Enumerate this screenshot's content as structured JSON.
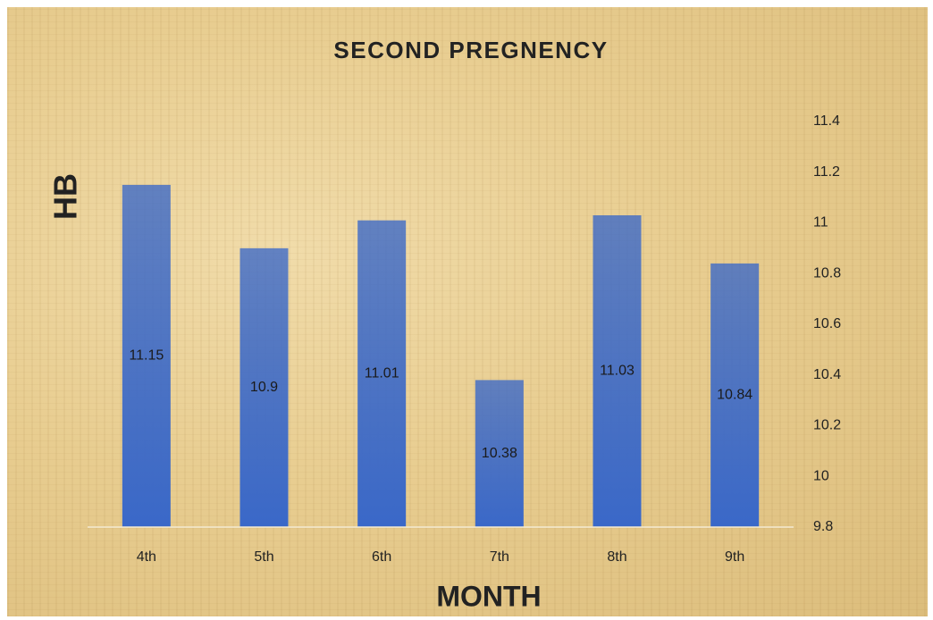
{
  "chart_data": {
    "type": "bar",
    "title": "SECOND PREGNENCY",
    "x_label": "MONTH",
    "y_label": "HB",
    "categories": [
      "4th",
      "5th",
      "6th",
      "7th",
      "8th",
      "9th"
    ],
    "values": [
      11.15,
      10.9,
      11.01,
      10.38,
      11.03,
      10.84
    ],
    "color": "#3a68c8",
    "ylim": [
      9.8,
      11.4
    ],
    "yticks": [
      9.8,
      10,
      10.2,
      10.4,
      10.6,
      10.8,
      11,
      11.2,
      11.4
    ],
    "y_axis_side": "right",
    "grid": false,
    "data_labels": true
  }
}
